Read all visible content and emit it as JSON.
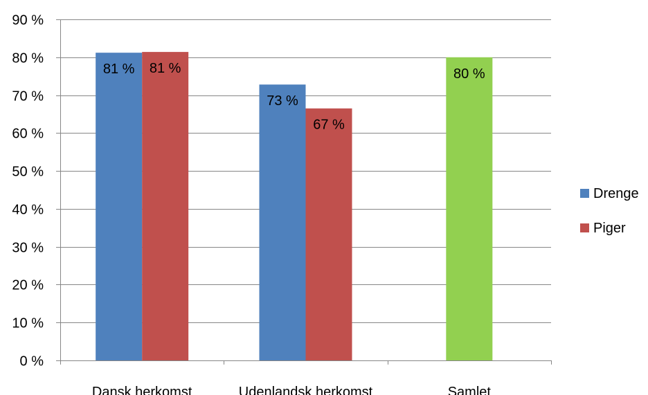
{
  "chart_data": {
    "type": "bar",
    "categories": [
      "Dansk herkomst",
      "Udenlandsk herkomst",
      "Samlet"
    ],
    "series": [
      {
        "name": "Drenge",
        "color": "#4F81BD",
        "values": [
          81.2,
          72.8,
          null
        ],
        "labels": [
          "81 %",
          "73 %",
          null
        ]
      },
      {
        "name": "Piger",
        "color": "#C0504D",
        "values": [
          81.4,
          66.5,
          null
        ],
        "labels": [
          "81 %",
          "67 %",
          null
        ]
      },
      {
        "name": "",
        "color": "#92D050",
        "values": [
          null,
          null,
          80.0
        ],
        "labels": [
          null,
          null,
          "80 %"
        ],
        "in_legend": false
      }
    ],
    "y_ticks": [
      "0 %",
      "10 %",
      "20 %",
      "30 %",
      "40 %",
      "50 %",
      "60 %",
      "70 %",
      "80 %",
      "90 %"
    ],
    "ylim": [
      0,
      90
    ],
    "grid": true,
    "legend": {
      "placement": "right",
      "entries": [
        "Drenge",
        "Piger"
      ]
    },
    "title": "",
    "xlabel": "",
    "ylabel": ""
  }
}
